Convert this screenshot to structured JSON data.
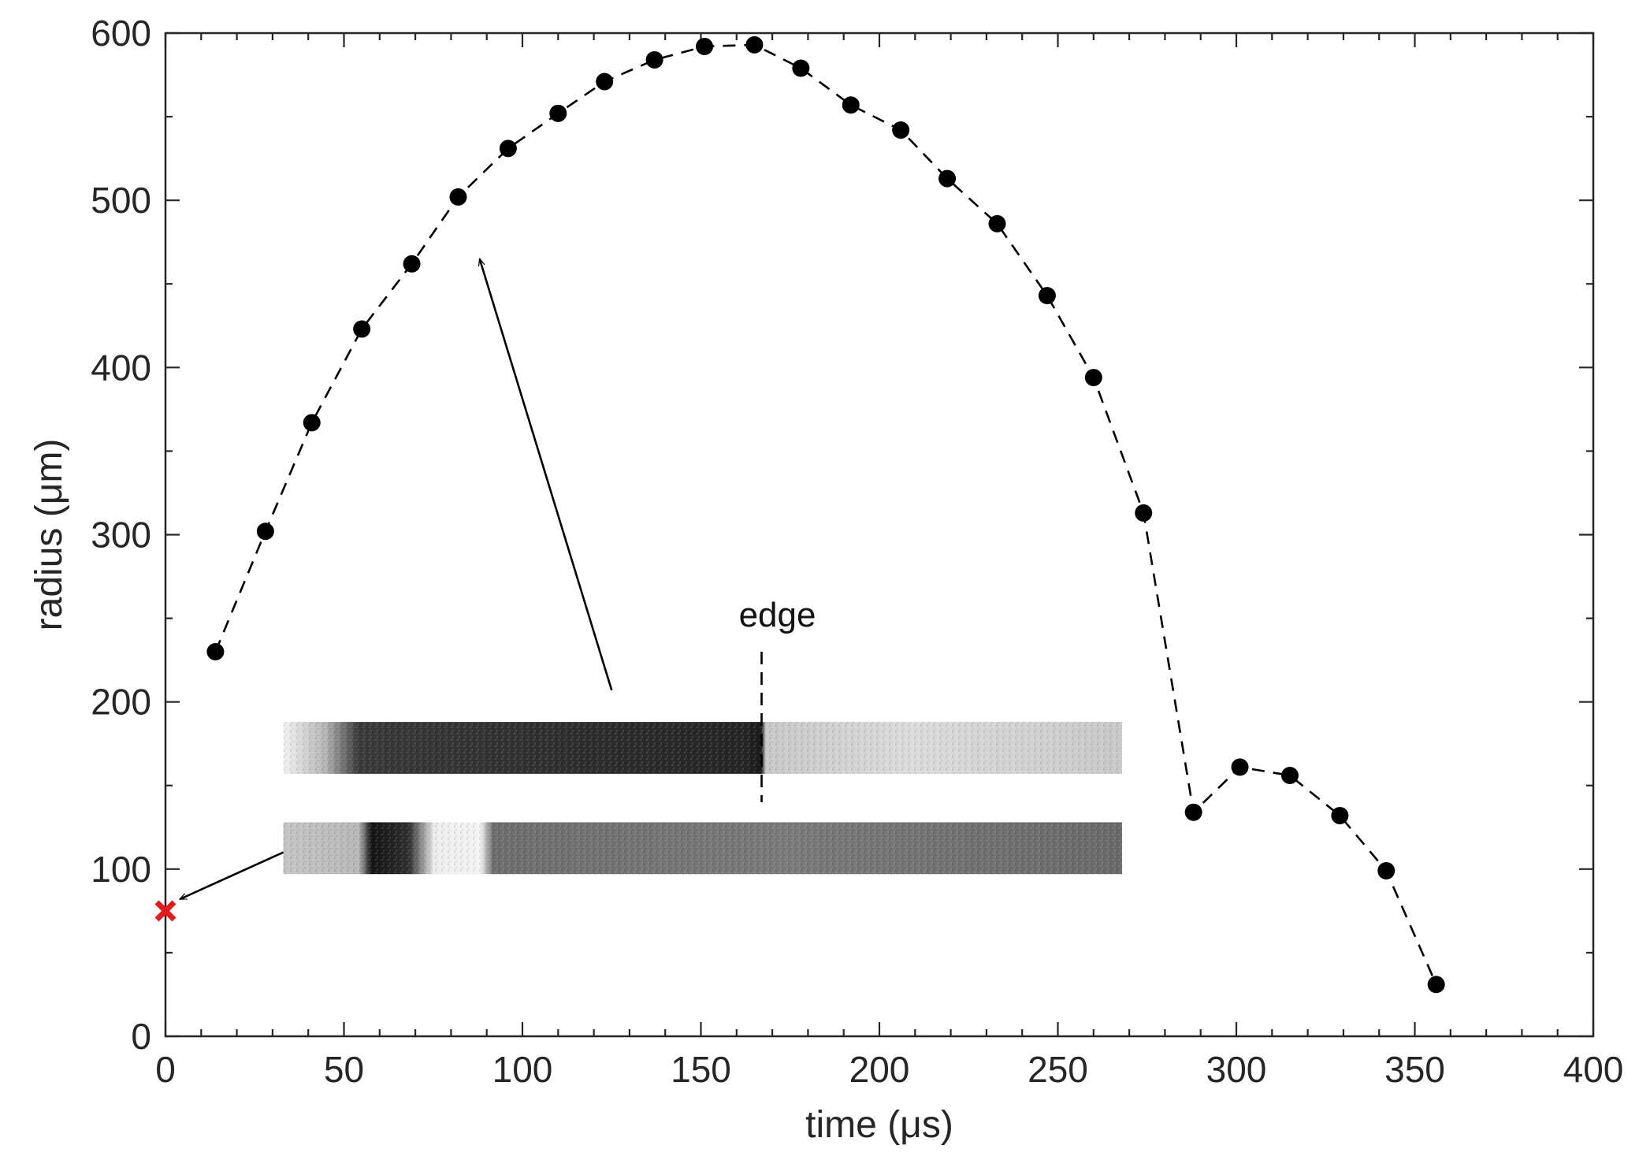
{
  "chart_data": {
    "type": "line",
    "xlabel": "time (μs)",
    "ylabel": "radius (μm)",
    "xlim": [
      0,
      400
    ],
    "ylim": [
      0,
      600
    ],
    "xticks": [
      0,
      50,
      100,
      150,
      200,
      250,
      300,
      350,
      400
    ],
    "yticks": [
      0,
      100,
      200,
      300,
      400,
      500,
      600
    ],
    "grid": false,
    "legend": "none",
    "series": [
      {
        "line_style": "dashed",
        "marker": "filled-circle",
        "color": "#000000",
        "x": [
          14,
          28,
          41,
          55,
          69,
          82,
          96,
          110,
          123,
          137,
          151,
          165,
          178,
          192,
          206,
          219,
          233,
          247,
          260,
          274,
          288,
          301,
          315,
          329,
          342,
          356
        ],
        "y": [
          230,
          302,
          367,
          423,
          462,
          502,
          531,
          552,
          571,
          584,
          592,
          593,
          579,
          557,
          542,
          513,
          486,
          443,
          394,
          313,
          134,
          161,
          156,
          132,
          99,
          31
        ]
      }
    ],
    "special_point": {
      "marker": "x",
      "color": "#e41a1c",
      "x": 0,
      "y": 75
    },
    "annotations": {
      "edge_label": "edge",
      "edge_x": 167
    },
    "insets": [
      {
        "name": "upper-strip",
        "x_from": 33,
        "x_to": 268,
        "y_from": 157,
        "y_to": 188
      },
      {
        "name": "lower-strip",
        "x_from": 33,
        "x_to": 268,
        "y_from": 97,
        "y_to": 128
      }
    ],
    "arrows": [
      {
        "name": "arrow-to-curve",
        "from": [
          125,
          207
        ],
        "to": [
          88,
          465
        ]
      },
      {
        "name": "arrow-to-origin",
        "from": [
          33,
          110
        ],
        "to": [
          4,
          82
        ]
      }
    ]
  }
}
